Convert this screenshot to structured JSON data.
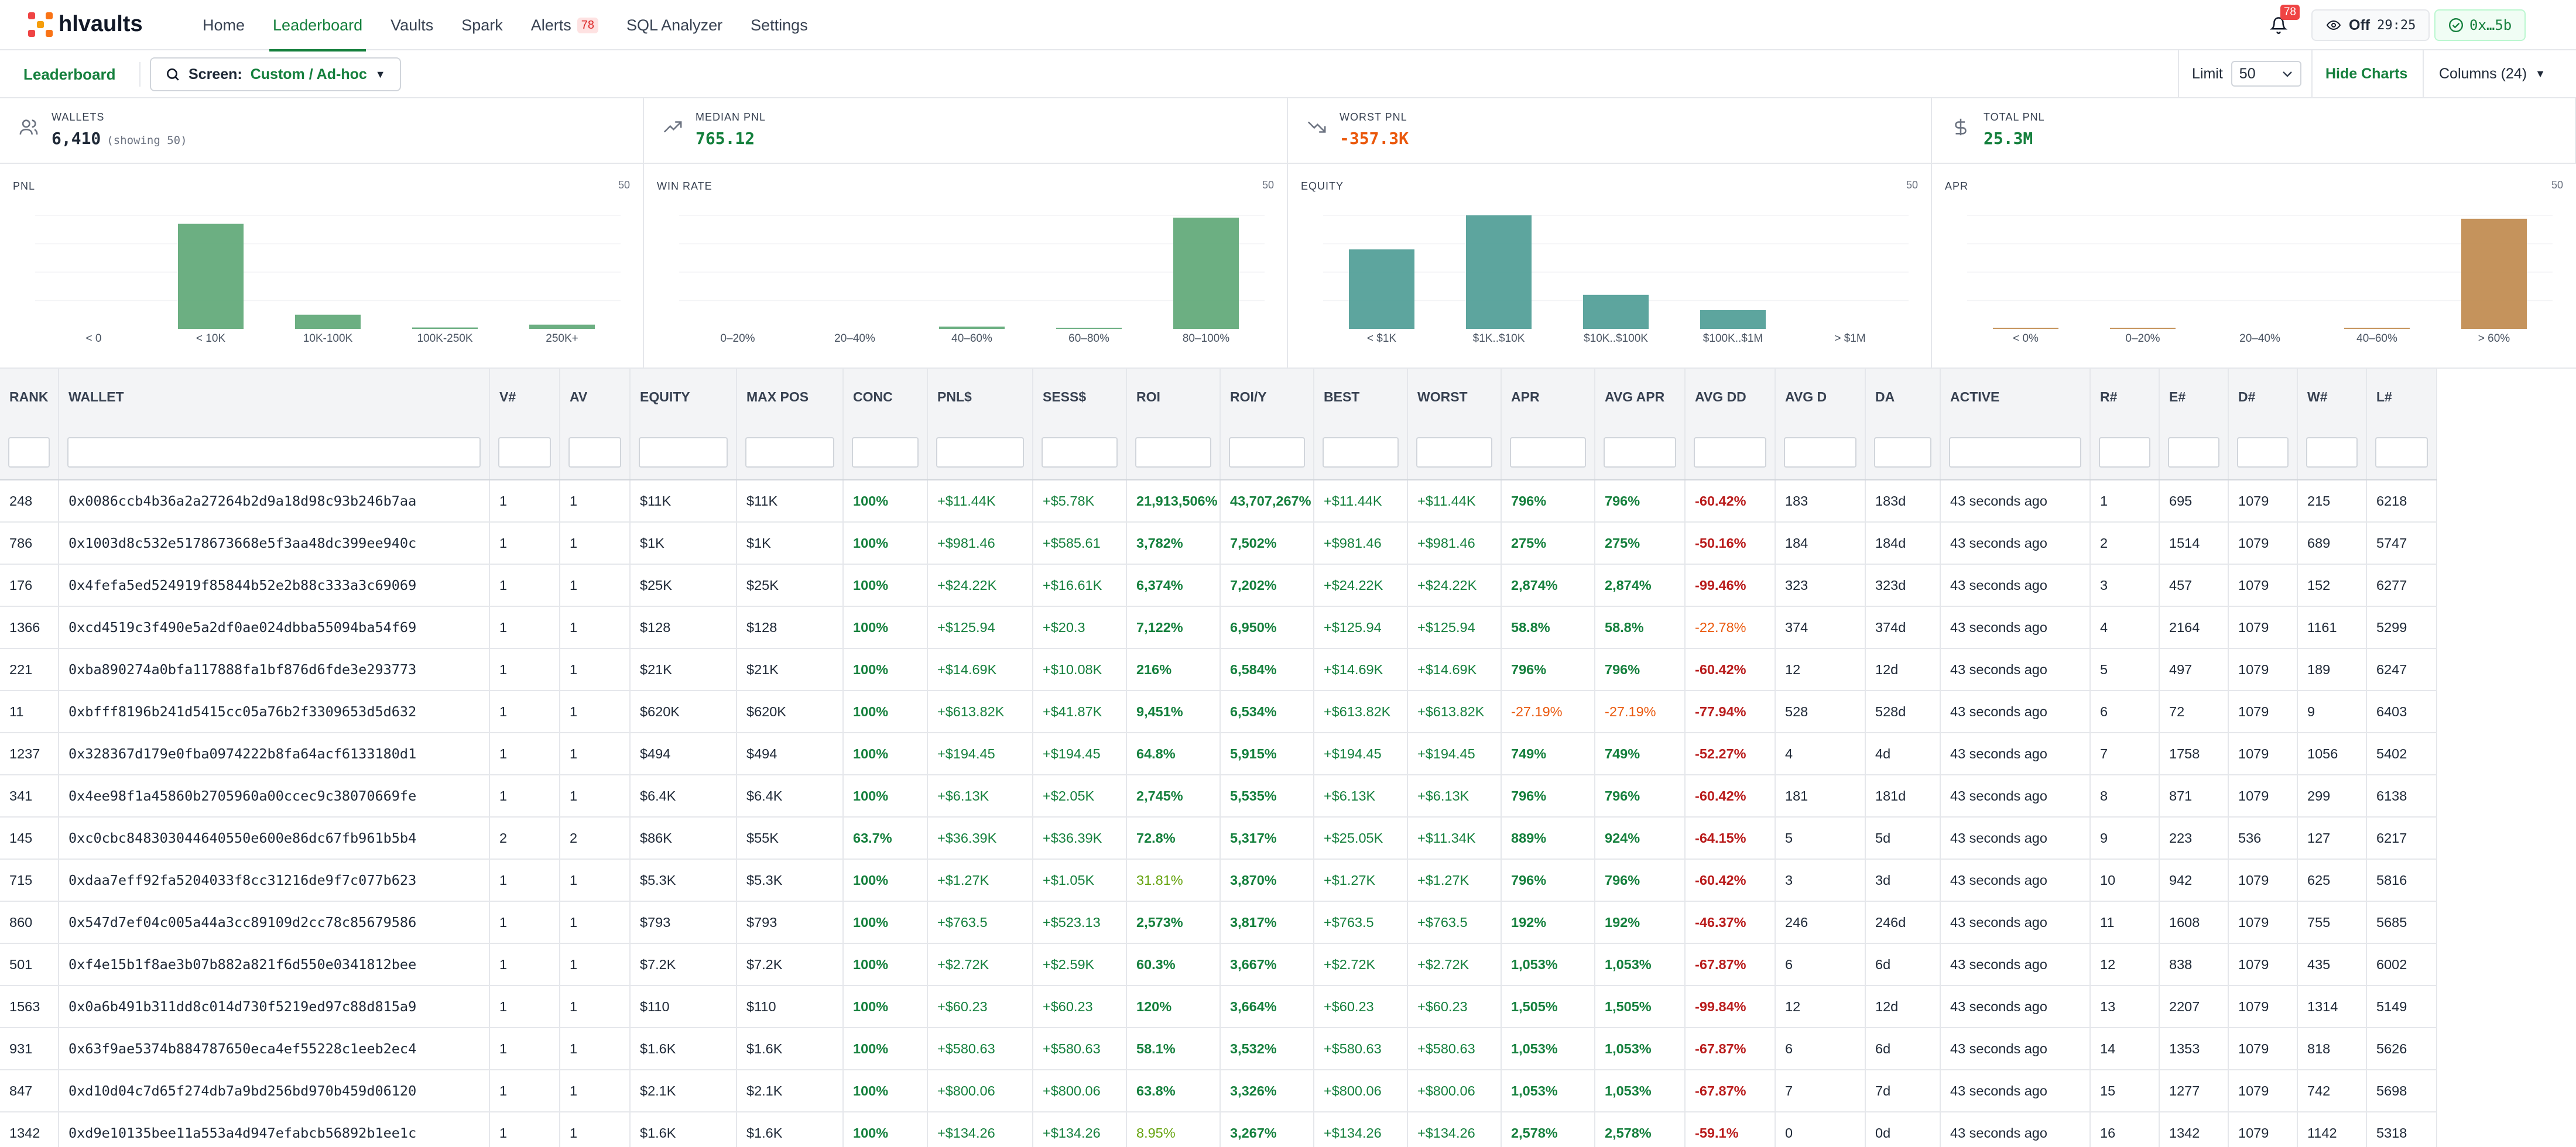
{
  "app": {
    "name": "hlvaults"
  },
  "nav": {
    "items": [
      "Home",
      "Leaderboard",
      "Vaults",
      "Spark",
      "Alerts",
      "SQL Analyzer",
      "Settings"
    ],
    "alerts_badge": "78"
  },
  "header": {
    "bell_badge": "78",
    "off_label": "Off",
    "off_timer": "29:25",
    "wallet": "0x…5b"
  },
  "subbar": {
    "title": "Leaderboard",
    "screen_label": "Screen:",
    "screen_value": "Custom / Ad-hoc",
    "limit_label": "Limit",
    "limit_value": "50",
    "hide_charts": "Hide Charts",
    "columns": "Columns (24)"
  },
  "stats": [
    {
      "label": "WALLETS",
      "value": "6,410",
      "sub": "(showing 50)",
      "icon": "users-icon"
    },
    {
      "label": "MEDIAN PNL",
      "value": "765.12",
      "sub": "",
      "icon": "trend-up-icon"
    },
    {
      "label": "WORST PNL",
      "value": "-357.3K",
      "sub": "",
      "icon": "trend-down-icon"
    },
    {
      "label": "TOTAL PNL",
      "value": "25.3M",
      "sub": "",
      "icon": "dollar-icon"
    }
  ],
  "colors": {
    "accent": "#15803d",
    "negative": "#dc2626",
    "pnl_bar": "#5fa877",
    "equity_bar": "#4f9d96",
    "apr_bar": "#c08a4e"
  },
  "chart_data": [
    {
      "type": "bar",
      "title": "PNL",
      "count": "50",
      "categories": [
        "< 0",
        "< 10K",
        "10K-100K",
        "100K-250K",
        "250K+"
      ],
      "values": [
        0,
        37,
        5,
        0.5,
        1.5
      ],
      "ylim": [
        0,
        40
      ],
      "color": "#5fa877"
    },
    {
      "type": "bar",
      "title": "WIN RATE",
      "count": "50",
      "categories": [
        "0–20%",
        "20–40%",
        "40–60%",
        "60–80%",
        "80–100%"
      ],
      "values": [
        0,
        0,
        1,
        0.5,
        49
      ],
      "ylim": [
        0,
        50
      ],
      "color": "#5fa877"
    },
    {
      "type": "bar",
      "title": "EQUITY",
      "count": "50",
      "categories": [
        "< $1K",
        "$1K..$10K",
        "$10K..$100K",
        "$100K..$1M",
        "> $1M"
      ],
      "values": [
        14,
        20,
        6,
        3.3,
        0
      ],
      "ylim": [
        0,
        20
      ],
      "color": "#4f9d96"
    },
    {
      "type": "bar",
      "title": "APR",
      "count": "50",
      "categories": [
        "< 0%",
        "0–20%",
        "20–40%",
        "40–60%",
        "> 60%"
      ],
      "values": [
        0.5,
        0.5,
        0,
        0.5,
        48.5
      ],
      "ylim": [
        0,
        50
      ],
      "color": "#c08a4e"
    }
  ],
  "table": {
    "columns": [
      "RANK",
      "WALLET",
      "V#",
      "AV",
      "EQUITY",
      "MAX POS",
      "CONC",
      "PNL$",
      "SESS$",
      "ROI",
      "ROI/Y",
      "BEST",
      "WORST",
      "APR",
      "AVG APR",
      "AVG DD",
      "AVG D",
      "DA",
      "ACTIVE",
      "R#",
      "E#",
      "D#",
      "W#",
      "L#"
    ],
    "rows": [
      [
        "248",
        "0x0086ccb4b36a2a27264b2d9a18d98c93b246b7aa",
        "1",
        "1",
        "$11K",
        "$11K",
        "100%",
        "+$11.44K",
        "+$5.78K",
        "21,913,506%",
        "43,707,267%",
        "+$11.44K",
        "+$11.44K",
        "796%",
        "796%",
        "-60.42%",
        "183",
        "183d",
        "43 seconds ago",
        "1",
        "695",
        "1079",
        "215",
        "6218"
      ],
      [
        "786",
        "0x1003d8c532e5178673668e5f3aa48dc399ee940c",
        "1",
        "1",
        "$1K",
        "$1K",
        "100%",
        "+$981.46",
        "+$585.61",
        "3,782%",
        "7,502%",
        "+$981.46",
        "+$981.46",
        "275%",
        "275%",
        "-50.16%",
        "184",
        "184d",
        "43 seconds ago",
        "2",
        "1514",
        "1079",
        "689",
        "5747"
      ],
      [
        "176",
        "0x4fefa5ed524919f85844b52e2b88c333a3c69069",
        "1",
        "1",
        "$25K",
        "$25K",
        "100%",
        "+$24.22K",
        "+$16.61K",
        "6,374%",
        "7,202%",
        "+$24.22K",
        "+$24.22K",
        "2,874%",
        "2,874%",
        "-99.46%",
        "323",
        "323d",
        "43 seconds ago",
        "3",
        "457",
        "1079",
        "152",
        "6277"
      ],
      [
        "1366",
        "0xcd4519c3f490e5a2df0ae024dbba55094ba54f69",
        "1",
        "1",
        "$128",
        "$128",
        "100%",
        "+$125.94",
        "+$20.3",
        "7,122%",
        "6,950%",
        "+$125.94",
        "+$125.94",
        "58.8%",
        "58.8%",
        "-22.78%",
        "374",
        "374d",
        "43 seconds ago",
        "4",
        "2164",
        "1079",
        "1161",
        "5299"
      ],
      [
        "221",
        "0xba890274a0bfa117888fa1bf876d6fde3e293773",
        "1",
        "1",
        "$21K",
        "$21K",
        "100%",
        "+$14.69K",
        "+$10.08K",
        "216%",
        "6,584%",
        "+$14.69K",
        "+$14.69K",
        "796%",
        "796%",
        "-60.42%",
        "12",
        "12d",
        "43 seconds ago",
        "5",
        "497",
        "1079",
        "189",
        "6247"
      ],
      [
        "11",
        "0xbfff8196b241d5415cc05a76b2f3309653d5d632",
        "1",
        "1",
        "$620K",
        "$620K",
        "100%",
        "+$613.82K",
        "+$41.87K",
        "9,451%",
        "6,534%",
        "+$613.82K",
        "+$613.82K",
        "-27.19%",
        "-27.19%",
        "-77.94%",
        "528",
        "528d",
        "43 seconds ago",
        "6",
        "72",
        "1079",
        "9",
        "6403"
      ],
      [
        "1237",
        "0x328367d179e0fba0974222b8fa64acf6133180d1",
        "1",
        "1",
        "$494",
        "$494",
        "100%",
        "+$194.45",
        "+$194.45",
        "64.8%",
        "5,915%",
        "+$194.45",
        "+$194.45",
        "749%",
        "749%",
        "-52.27%",
        "4",
        "4d",
        "43 seconds ago",
        "7",
        "1758",
        "1079",
        "1056",
        "5402"
      ],
      [
        "341",
        "0x4ee98f1a45860b2705960a00ccec9c38070669fe",
        "1",
        "1",
        "$6.4K",
        "$6.4K",
        "100%",
        "+$6.13K",
        "+$2.05K",
        "2,745%",
        "5,535%",
        "+$6.13K",
        "+$6.13K",
        "796%",
        "796%",
        "-60.42%",
        "181",
        "181d",
        "43 seconds ago",
        "8",
        "871",
        "1079",
        "299",
        "6138"
      ],
      [
        "145",
        "0xc0cbc848303044640550e600e86dc67fb961b5b4",
        "2",
        "2",
        "$86K",
        "$55K",
        "63.7%",
        "+$36.39K",
        "+$36.39K",
        "72.8%",
        "5,317%",
        "+$25.05K",
        "+$11.34K",
        "889%",
        "924%",
        "-64.15%",
        "5",
        "5d",
        "43 seconds ago",
        "9",
        "223",
        "536",
        "127",
        "6217"
      ],
      [
        "715",
        "0xdaa7eff92fa5204033f8cc31216de9f7c077b623",
        "1",
        "1",
        "$5.3K",
        "$5.3K",
        "100%",
        "+$1.27K",
        "+$1.05K",
        "31.81%",
        "3,870%",
        "+$1.27K",
        "+$1.27K",
        "796%",
        "796%",
        "-60.42%",
        "3",
        "3d",
        "43 seconds ago",
        "10",
        "942",
        "1079",
        "625",
        "5816"
      ],
      [
        "860",
        "0x547d7ef04c005a44a3cc89109d2cc78c85679586",
        "1",
        "1",
        "$793",
        "$793",
        "100%",
        "+$763.5",
        "+$523.13",
        "2,573%",
        "3,817%",
        "+$763.5",
        "+$763.5",
        "192%",
        "192%",
        "-46.37%",
        "246",
        "246d",
        "43 seconds ago",
        "11",
        "1608",
        "1079",
        "755",
        "5685"
      ],
      [
        "501",
        "0xf4e15b1f8ae3b07b882a821f6d550e0341812bee",
        "1",
        "1",
        "$7.2K",
        "$7.2K",
        "100%",
        "+$2.72K",
        "+$2.59K",
        "60.3%",
        "3,667%",
        "+$2.72K",
        "+$2.72K",
        "1,053%",
        "1,053%",
        "-67.87%",
        "6",
        "6d",
        "43 seconds ago",
        "12",
        "838",
        "1079",
        "435",
        "6002"
      ],
      [
        "1563",
        "0x0a6b491b311dd8c014d730f5219ed97c88d815a9",
        "1",
        "1",
        "$110",
        "$110",
        "100%",
        "+$60.23",
        "+$60.23",
        "120%",
        "3,664%",
        "+$60.23",
        "+$60.23",
        "1,505%",
        "1,505%",
        "-99.84%",
        "12",
        "12d",
        "43 seconds ago",
        "13",
        "2207",
        "1079",
        "1314",
        "5149"
      ],
      [
        "931",
        "0x63f9ae5374b884787650eca4ef55228c1eeb2ec4",
        "1",
        "1",
        "$1.6K",
        "$1.6K",
        "100%",
        "+$580.63",
        "+$580.63",
        "58.1%",
        "3,532%",
        "+$580.63",
        "+$580.63",
        "1,053%",
        "1,053%",
        "-67.87%",
        "6",
        "6d",
        "43 seconds ago",
        "14",
        "1353",
        "1079",
        "818",
        "5626"
      ],
      [
        "847",
        "0xd10d04c7d65f274db7a9bd256bd970b459d06120",
        "1",
        "1",
        "$2.1K",
        "$2.1K",
        "100%",
        "+$800.06",
        "+$800.06",
        "63.8%",
        "3,326%",
        "+$800.06",
        "+$800.06",
        "1,053%",
        "1,053%",
        "-67.87%",
        "7",
        "7d",
        "43 seconds ago",
        "15",
        "1277",
        "1079",
        "742",
        "5698"
      ],
      [
        "1342",
        "0xd9e10135bee11a553a4d947efabcb56892b1ee1c",
        "1",
        "1",
        "$1.6K",
        "$1.6K",
        "100%",
        "+$134.26",
        "+$134.26",
        "8.95%",
        "3,267%",
        "+$134.26",
        "+$134.26",
        "2,578%",
        "2,578%",
        "-59.1%",
        "0",
        "0d",
        "43 seconds ago",
        "16",
        "1342",
        "1079",
        "1142",
        "5318"
      ]
    ]
  }
}
